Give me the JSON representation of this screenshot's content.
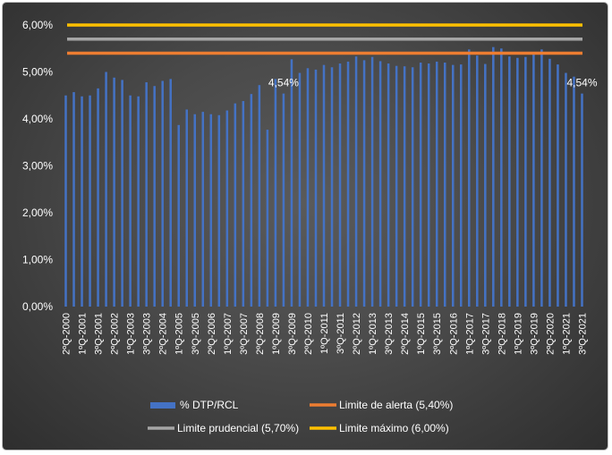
{
  "chart_data": {
    "type": "bar",
    "ylim": [
      0,
      6
    ],
    "y_ticks": [
      "0,00%",
      "1,00%",
      "2,00%",
      "3,00%",
      "4,00%",
      "5,00%",
      "6,00%"
    ],
    "grid": false,
    "legend_position": "bottom",
    "x_tick_labels": [
      "2ºQ-2000",
      "1ºQ-2001",
      "3ºQ-2001",
      "2ºQ-2002",
      "1ºQ-2003",
      "3ºQ-2003",
      "2ºQ-2004",
      "1ºQ-2005",
      "3ºQ-2005",
      "2ºQ-2006",
      "1ºQ-2007",
      "3ºQ-2007",
      "2ºQ-2008",
      "1ºQ-2009",
      "3ºQ-2009",
      "2ºQ-2010",
      "1ºQ-2011",
      "3ºQ-2011",
      "2ºQ-2012",
      "1ºQ-2013",
      "3ºQ-2013",
      "2ºQ-2014",
      "1ºQ-2015",
      "3ºQ-2015",
      "2ºQ-2016",
      "1ºQ-2017",
      "3ºQ-2017",
      "2ºQ-2018",
      "1ºQ-2019",
      "3ºQ-2019",
      "2ºQ-2020",
      "1ºQ-2021",
      "3ºQ-2021"
    ],
    "series": [
      {
        "name": "% DTP/RCL",
        "color": "#4472c4",
        "values": [
          4.5,
          4.57,
          4.48,
          4.5,
          4.65,
          5.0,
          4.88,
          4.83,
          4.5,
          4.48,
          4.78,
          4.7,
          4.81,
          4.85,
          3.87,
          4.2,
          4.1,
          4.15,
          4.1,
          4.08,
          4.18,
          4.33,
          4.38,
          4.53,
          4.72,
          3.77,
          4.85,
          4.54,
          5.27,
          4.98,
          5.08,
          5.05,
          5.15,
          5.1,
          5.18,
          5.22,
          5.33,
          5.25,
          5.32,
          5.23,
          5.18,
          5.13,
          5.12,
          5.1,
          5.2,
          5.18,
          5.22,
          5.2,
          5.15,
          5.16,
          5.48,
          5.35,
          5.17,
          5.53,
          5.5,
          5.33,
          5.3,
          5.32,
          5.38,
          5.48,
          5.28,
          5.16,
          4.98,
          4.9,
          4.54
        ]
      },
      {
        "name": "Limite de alerta (5,40%)",
        "color": "#ed7d31",
        "value": 5.4
      },
      {
        "name": "Limite prudencial (5,70%)",
        "color": "#a5a5a5",
        "value": 5.7
      },
      {
        "name": "Limite máximo (6,00%)",
        "color": "#ffc000",
        "value": 6.0
      }
    ],
    "annotations": [
      "4,54%",
      "4,54%"
    ]
  }
}
